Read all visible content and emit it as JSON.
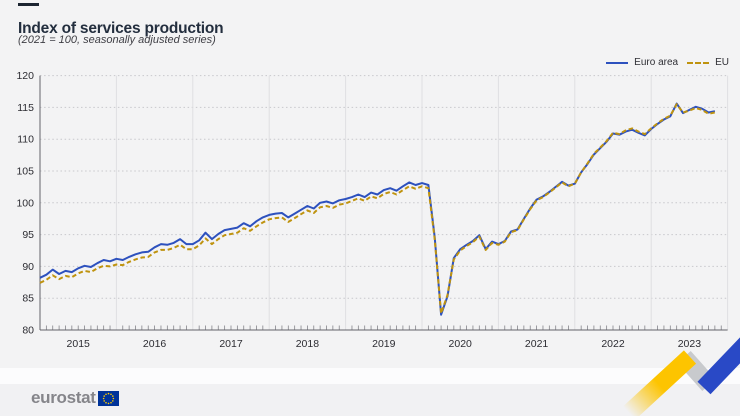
{
  "title": "Index of services production",
  "subtitle": "(2021 = 100, seasonally adjusted series)",
  "legend": {
    "items": [
      {
        "label": "Euro area",
        "color": "#2d51be",
        "style": "solid"
      },
      {
        "label": "EU",
        "color": "#bf930f",
        "style": "dashed"
      }
    ],
    "position": "top-right"
  },
  "footer": {
    "brand": "eurostat"
  },
  "colors": {
    "background": "#f3f3f4",
    "title_text": "#232e3e",
    "axis": "#63636a",
    "gridline": "#c8c8cc",
    "year_separator": "#dfdfe2",
    "euro_area_line": "#2d51be",
    "eu_line": "#bf930f",
    "ribbon_yellow": "#fdc400",
    "ribbon_gray": "#c8cacd",
    "ribbon_blue": "#2949c6",
    "flag_blue": "#003399",
    "flag_stars": "#ffcc00"
  },
  "chart_data": {
    "type": "line",
    "title": "Index of services production",
    "subtitle": "(2021 = 100, seasonally adjusted series)",
    "frequency": "monthly",
    "x_start": "2015-01",
    "x_end": "2023-11",
    "year_labels": [
      "2015",
      "2016",
      "2017",
      "2018",
      "2019",
      "2020",
      "2021",
      "2022",
      "2023"
    ],
    "y_ticks": [
      80,
      85,
      90,
      95,
      100,
      105,
      110,
      115,
      120
    ],
    "ylim": [
      80,
      120
    ],
    "grid": "dotted-horizontal",
    "legend_position": "top-right",
    "series": [
      {
        "name": "Euro area",
        "color": "#2d51be",
        "dash": "solid",
        "values": [
          88.2,
          88.7,
          89.5,
          88.8,
          89.3,
          89.1,
          89.7,
          90.1,
          89.9,
          90.5,
          91.0,
          90.8,
          91.2,
          91.0,
          91.5,
          91.9,
          92.2,
          92.3,
          93.0,
          93.5,
          93.4,
          93.7,
          94.3,
          93.5,
          93.5,
          94.1,
          95.3,
          94.3,
          95.1,
          95.7,
          95.9,
          96.1,
          96.8,
          96.3,
          97.1,
          97.7,
          98.1,
          98.3,
          98.4,
          97.7,
          98.3,
          98.9,
          99.5,
          99.1,
          100.0,
          100.2,
          99.9,
          100.4,
          100.6,
          100.9,
          101.3,
          100.9,
          101.6,
          101.3,
          102.0,
          102.3,
          101.9,
          102.6,
          103.2,
          102.8,
          103.1,
          102.8,
          94.6,
          82.4,
          85.3,
          91.3,
          92.7,
          93.4,
          94.0,
          94.9,
          92.7,
          93.9,
          93.5,
          94.0,
          95.5,
          95.8,
          97.5,
          99.1,
          100.5,
          101.0,
          101.7,
          102.5,
          103.3,
          102.7,
          103.0,
          104.8,
          106.1,
          107.6,
          108.6,
          109.6,
          110.9,
          110.7,
          111.2,
          111.5,
          111.0,
          110.6,
          111.6,
          112.4,
          113.1,
          113.6,
          115.6,
          114.1,
          114.6,
          115.1,
          114.8,
          114.2,
          114.4
        ]
      },
      {
        "name": "EU",
        "color": "#bf930f",
        "dash": "dashed",
        "values": [
          87.4,
          87.9,
          88.6,
          88.0,
          88.5,
          88.3,
          88.9,
          89.3,
          89.1,
          89.7,
          90.1,
          90.0,
          90.3,
          90.2,
          90.7,
          91.1,
          91.4,
          91.5,
          92.2,
          92.6,
          92.6,
          92.9,
          93.4,
          92.7,
          92.7,
          93.3,
          94.4,
          93.5,
          94.3,
          94.9,
          95.1,
          95.3,
          96.0,
          95.6,
          96.3,
          96.9,
          97.4,
          97.6,
          97.7,
          97.0,
          97.6,
          98.2,
          98.8,
          98.4,
          99.3,
          99.5,
          99.2,
          99.7,
          99.9,
          100.3,
          100.7,
          100.3,
          101.0,
          100.7,
          101.4,
          101.7,
          101.3,
          102.0,
          102.6,
          102.2,
          102.6,
          102.3,
          94.3,
          82.6,
          85.5,
          91.1,
          92.5,
          93.2,
          93.8,
          94.7,
          92.6,
          93.7,
          93.4,
          93.9,
          95.4,
          95.7,
          97.4,
          99.0,
          100.4,
          100.9,
          101.6,
          102.4,
          103.2,
          102.6,
          103.0,
          104.8,
          106.2,
          107.7,
          108.7,
          109.7,
          111.0,
          110.8,
          111.4,
          111.7,
          111.2,
          110.8,
          111.7,
          112.5,
          113.2,
          113.7,
          115.5,
          114.2,
          114.5,
          114.9,
          114.6,
          114.0,
          114.2
        ]
      }
    ]
  }
}
